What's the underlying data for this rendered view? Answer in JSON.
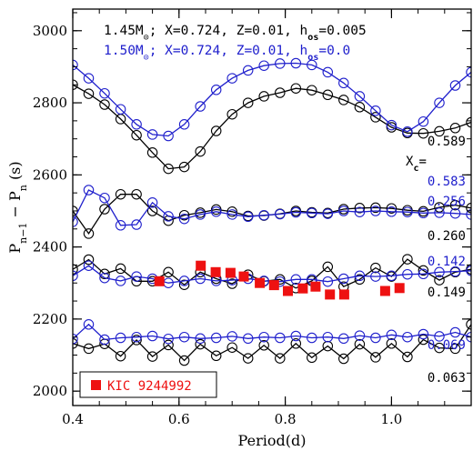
{
  "chart_data": {
    "type": "line",
    "title": "",
    "xlabel": "Period(d)",
    "ylabel": "P_{n-1} − P_n (s)",
    "xlim": [
      0.4,
      1.15
    ],
    "ylim": [
      1960,
      3060
    ],
    "x_ticks": [
      0.4,
      0.6,
      0.8,
      1.0
    ],
    "y_ticks": [
      2000,
      2200,
      2400,
      2600,
      2800,
      3000
    ],
    "grid": false,
    "legend_placement": "top-left",
    "legend": [
      {
        "prefix": "1.45M",
        "mass_sub": "⊙",
        "middle": "; X=0.724, Z=0.01, h",
        "h_sub": "os",
        "suffix": "=0.005",
        "color": "#000000"
      },
      {
        "prefix": "1.50M",
        "mass_sub": "⊙",
        "middle": "; X=0.724, Z=0.01, h",
        "h_sub": "os",
        "suffix": "=0.0",
        "color": "#1f1fcc"
      }
    ],
    "xc_label": {
      "main": "X",
      "sub": "c",
      "eq": "="
    },
    "series": [
      {
        "color": "#000000",
        "annotation": "0.589",
        "x": [
          0.4,
          0.43,
          0.46,
          0.49,
          0.52,
          0.55,
          0.58,
          0.61,
          0.64,
          0.67,
          0.7,
          0.73,
          0.76,
          0.79,
          0.82,
          0.85,
          0.88,
          0.91,
          0.94,
          0.97,
          1.0,
          1.03,
          1.06,
          1.09,
          1.12,
          1.15
        ],
        "y": [
          2850,
          2825,
          2795,
          2755,
          2710,
          2662,
          2617,
          2622,
          2665,
          2722,
          2768,
          2800,
          2818,
          2828,
          2840,
          2835,
          2822,
          2808,
          2788,
          2760,
          2732,
          2716,
          2715,
          2721,
          2730,
          2746
        ]
      },
      {
        "color": "#1f1fcc",
        "annotation": "0.583",
        "x": [
          0.4,
          0.43,
          0.46,
          0.49,
          0.52,
          0.55,
          0.58,
          0.61,
          0.64,
          0.67,
          0.7,
          0.73,
          0.76,
          0.79,
          0.82,
          0.85,
          0.88,
          0.91,
          0.94,
          0.97,
          1.0,
          1.03,
          1.06,
          1.09,
          1.12,
          1.15
        ],
        "y": [
          2905,
          2868,
          2826,
          2782,
          2740,
          2712,
          2708,
          2740,
          2790,
          2836,
          2868,
          2890,
          2903,
          2909,
          2910,
          2905,
          2885,
          2855,
          2818,
          2778,
          2738,
          2720,
          2748,
          2800,
          2848,
          2885
        ]
      },
      {
        "color": "#000000",
        "annotation": "0.260",
        "x": [
          0.4,
          0.43,
          0.46,
          0.49,
          0.52,
          0.55,
          0.58,
          0.61,
          0.64,
          0.67,
          0.7,
          0.73,
          0.76,
          0.79,
          0.82,
          0.85,
          0.88,
          0.91,
          0.94,
          0.97,
          1.0,
          1.03,
          1.06,
          1.09,
          1.12,
          1.15
        ],
        "y": [
          2500,
          2437,
          2505,
          2546,
          2546,
          2500,
          2473,
          2488,
          2495,
          2504,
          2498,
          2486,
          2487,
          2492,
          2500,
          2496,
          2494,
          2505,
          2508,
          2509,
          2507,
          2502,
          2499,
          2510,
          2516,
          2508
        ]
      },
      {
        "color": "#1f1fcc",
        "annotation": "0.256",
        "x": [
          0.4,
          0.43,
          0.46,
          0.49,
          0.52,
          0.55,
          0.58,
          0.61,
          0.64,
          0.67,
          0.7,
          0.73,
          0.76,
          0.79,
          0.82,
          0.85,
          0.88,
          0.91,
          0.94,
          0.97,
          1.0,
          1.03,
          1.06,
          1.09,
          1.12,
          1.15
        ],
        "y": [
          2470,
          2558,
          2536,
          2460,
          2462,
          2523,
          2485,
          2478,
          2490,
          2498,
          2490,
          2484,
          2488,
          2491,
          2496,
          2494,
          2492,
          2500,
          2497,
          2500,
          2498,
          2497,
          2494,
          2495,
          2493,
          2490
        ]
      },
      {
        "color": "#000000",
        "annotation": "0.149",
        "x": [
          0.4,
          0.43,
          0.46,
          0.49,
          0.52,
          0.55,
          0.58,
          0.61,
          0.64,
          0.67,
          0.7,
          0.73,
          0.76,
          0.79,
          0.82,
          0.85,
          0.88,
          0.91,
          0.94,
          0.97,
          1.0,
          1.03,
          1.06,
          1.09,
          1.12,
          1.15
        ],
        "y": [
          2338,
          2365,
          2325,
          2340,
          2305,
          2305,
          2330,
          2295,
          2330,
          2312,
          2298,
          2323,
          2305,
          2310,
          2286,
          2306,
          2345,
          2290,
          2310,
          2342,
          2318,
          2366,
          2335,
          2308,
          2330,
          2338
        ]
      },
      {
        "color": "#1f1fcc",
        "annotation": "0.142",
        "x": [
          0.4,
          0.43,
          0.46,
          0.49,
          0.52,
          0.55,
          0.58,
          0.61,
          0.64,
          0.67,
          0.7,
          0.73,
          0.76,
          0.79,
          0.82,
          0.85,
          0.88,
          0.91,
          0.94,
          0.97,
          1.0,
          1.03,
          1.06,
          1.09,
          1.12,
          1.15
        ],
        "y": [
          2320,
          2348,
          2314,
          2306,
          2318,
          2312,
          2300,
          2306,
          2312,
          2306,
          2308,
          2312,
          2306,
          2304,
          2310,
          2310,
          2304,
          2312,
          2320,
          2318,
          2320,
          2324,
          2325,
          2330,
          2332,
          2334
        ]
      },
      {
        "color": "#000000",
        "annotation": "0.063",
        "x": [
          0.4,
          0.43,
          0.46,
          0.49,
          0.52,
          0.55,
          0.58,
          0.61,
          0.64,
          0.67,
          0.7,
          0.73,
          0.76,
          0.79,
          0.82,
          0.85,
          0.88,
          0.91,
          0.94,
          0.97,
          1.0,
          1.03,
          1.06,
          1.09,
          1.12,
          1.15
        ],
        "y": [
          2132,
          2118,
          2131,
          2097,
          2142,
          2096,
          2128,
          2085,
          2130,
          2098,
          2121,
          2091,
          2127,
          2091,
          2132,
          2093,
          2125,
          2090,
          2130,
          2094,
          2132,
          2095,
          2143,
          2120,
          2118,
          2185
        ]
      },
      {
        "color": "#1f1fcc",
        "annotation": "0.069",
        "x": [
          0.4,
          0.43,
          0.46,
          0.49,
          0.52,
          0.55,
          0.58,
          0.61,
          0.64,
          0.67,
          0.7,
          0.73,
          0.76,
          0.79,
          0.82,
          0.85,
          0.88,
          0.91,
          0.94,
          0.97,
          1.0,
          1.03,
          1.06,
          1.09,
          1.12,
          1.15
        ],
        "y": [
          2145,
          2185,
          2143,
          2148,
          2150,
          2153,
          2145,
          2150,
          2146,
          2148,
          2152,
          2146,
          2150,
          2148,
          2153,
          2148,
          2150,
          2146,
          2154,
          2148,
          2156,
          2150,
          2158,
          2152,
          2163,
          2150
        ]
      }
    ],
    "observations": {
      "name": "KIC 9244992",
      "color": "#ee1111",
      "x": [
        0.563,
        0.641,
        0.669,
        0.697,
        0.722,
        0.752,
        0.779,
        0.805,
        0.833,
        0.857,
        0.884,
        0.911,
        0.988,
        1.015
      ],
      "y": [
        2305,
        2348,
        2330,
        2328,
        2318,
        2300,
        2294,
        2278,
        2285,
        2290,
        2268,
        2268,
        2278,
        2286
      ]
    }
  }
}
